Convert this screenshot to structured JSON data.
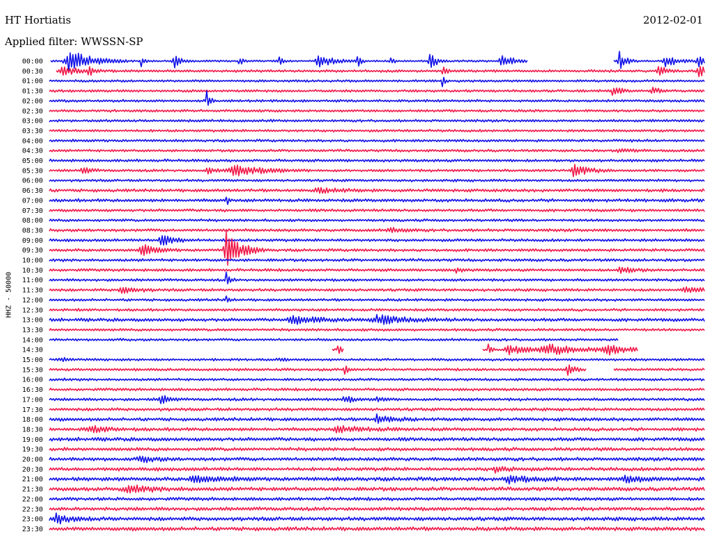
{
  "header": {
    "station": "HT Hortiatis",
    "filter": "Applied filter: WWSSN-SP",
    "date": "2012-02-01"
  },
  "colors": {
    "blue": "#1010e8",
    "red": "#f01848",
    "text": "#000000"
  },
  "chart_data": {
    "type": "line",
    "title": "HT Hortiatis",
    "subtitle": "Applied filter: WWSSN-SP",
    "date": "2012-02-01",
    "ylabel": "HHZ - 50000",
    "xlabel": "",
    "grid": false,
    "legend": "none",
    "series_colors": [
      "#1010e8",
      "#f01848"
    ],
    "rows": [
      {
        "label": "00:00",
        "noise": 1.5,
        "events": [
          {
            "x": 0.03,
            "amp": 18,
            "dur": 0.03
          },
          {
            "x": 0.14,
            "amp": 8,
            "dur": 0.005
          },
          {
            "x": 0.19,
            "amp": 10,
            "dur": 0.01
          },
          {
            "x": 0.29,
            "amp": 8,
            "dur": 0.005
          },
          {
            "x": 0.35,
            "amp": 10,
            "dur": 0.005
          },
          {
            "x": 0.41,
            "amp": 10,
            "dur": 0.02
          },
          {
            "x": 0.47,
            "amp": 12,
            "dur": 0.005
          },
          {
            "x": 0.52,
            "amp": 8,
            "dur": 0.005
          },
          {
            "x": 0.58,
            "amp": 12,
            "dur": 0.01
          },
          {
            "x": 0.69,
            "amp": 8,
            "dur": 0.02
          },
          {
            "x": 0.87,
            "amp": 14,
            "dur": 0.01
          },
          {
            "x": 0.94,
            "amp": 8,
            "dur": 0.02
          },
          {
            "x": 0.99,
            "amp": 10,
            "dur": 0.01
          }
        ],
        "gaps": [
          [
            0.0,
            0.0
          ],
          [
            0.73,
            0.86
          ]
        ]
      },
      {
        "label": "00:30",
        "noise": 2,
        "events": [
          {
            "x": 0.02,
            "amp": 7,
            "dur": 0.02
          },
          {
            "x": 0.06,
            "amp": 6,
            "dur": 0.01
          },
          {
            "x": 0.6,
            "amp": 8,
            "dur": 0.005
          },
          {
            "x": 0.93,
            "amp": 8,
            "dur": 0.01
          },
          {
            "x": 0.99,
            "amp": 10,
            "dur": 0.01
          }
        ],
        "gaps": [
          [
            0.0,
            0.01
          ]
        ]
      },
      {
        "label": "01:00",
        "noise": 1.8,
        "events": [
          {
            "x": 0.6,
            "amp": 10,
            "dur": 0.003
          }
        ],
        "gaps": []
      },
      {
        "label": "01:30",
        "noise": 2,
        "events": [
          {
            "x": 0.86,
            "amp": 9,
            "dur": 0.01
          },
          {
            "x": 0.92,
            "amp": 5,
            "dur": 0.01
          }
        ],
        "gaps": []
      },
      {
        "label": "02:00",
        "noise": 2,
        "events": [
          {
            "x": 0.24,
            "amp": 18,
            "dur": 0.005
          }
        ],
        "gaps": []
      },
      {
        "label": "02:30",
        "noise": 2,
        "events": [],
        "gaps": []
      },
      {
        "label": "03:00",
        "noise": 2,
        "events": [],
        "gaps": []
      },
      {
        "label": "03:30",
        "noise": 2,
        "events": [],
        "gaps": []
      },
      {
        "label": "04:00",
        "noise": 2,
        "events": [],
        "gaps": []
      },
      {
        "label": "04:30",
        "noise": 2,
        "events": [
          {
            "x": 0.87,
            "amp": 3,
            "dur": 0.02
          }
        ],
        "gaps": []
      },
      {
        "label": "05:00",
        "noise": 2.2,
        "events": [],
        "gaps": []
      },
      {
        "label": "05:30",
        "noise": 2,
        "events": [
          {
            "x": 0.05,
            "amp": 6,
            "dur": 0.01
          },
          {
            "x": 0.24,
            "amp": 5,
            "dur": 0.01
          },
          {
            "x": 0.28,
            "amp": 8,
            "dur": 0.04
          },
          {
            "x": 0.8,
            "amp": 9,
            "dur": 0.02
          }
        ],
        "gaps": []
      },
      {
        "label": "06:00",
        "noise": 2,
        "events": [],
        "gaps": []
      },
      {
        "label": "06:30",
        "noise": 2.4,
        "events": [
          {
            "x": 0.41,
            "amp": 3,
            "dur": 0.03
          }
        ],
        "gaps": []
      },
      {
        "label": "07:00",
        "noise": 2.4,
        "events": [
          {
            "x": 0.27,
            "amp": 8,
            "dur": 0.003
          }
        ],
        "gaps": []
      },
      {
        "label": "07:30",
        "noise": 2.2,
        "events": [],
        "gaps": []
      },
      {
        "label": "08:00",
        "noise": 2,
        "events": [],
        "gaps": []
      },
      {
        "label": "08:30",
        "noise": 2.3,
        "events": [
          {
            "x": 0.52,
            "amp": 3,
            "dur": 0.02
          }
        ],
        "gaps": []
      },
      {
        "label": "09:00",
        "noise": 2.2,
        "events": [
          {
            "x": 0.17,
            "amp": 8,
            "dur": 0.02
          }
        ],
        "gaps": []
      },
      {
        "label": "09:30",
        "noise": 2.2,
        "events": [
          {
            "x": 0.14,
            "amp": 8,
            "dur": 0.02
          },
          {
            "x": 0.27,
            "amp": 26,
            "dur": 0.02
          }
        ],
        "gaps": []
      },
      {
        "label": "10:00",
        "noise": 2.2,
        "events": [],
        "gaps": []
      },
      {
        "label": "10:30",
        "noise": 2.2,
        "events": [
          {
            "x": 0.62,
            "amp": 3,
            "dur": 0.01
          },
          {
            "x": 0.87,
            "amp": 5,
            "dur": 0.02
          }
        ],
        "gaps": []
      },
      {
        "label": "11:00",
        "noise": 2,
        "events": [
          {
            "x": 0.27,
            "amp": 10,
            "dur": 0.005
          }
        ],
        "gaps": []
      },
      {
        "label": "11:30",
        "noise": 2.2,
        "events": [
          {
            "x": 0.11,
            "amp": 5,
            "dur": 0.02
          },
          {
            "x": 0.97,
            "amp": 4,
            "dur": 0.02
          }
        ],
        "gaps": []
      },
      {
        "label": "12:00",
        "noise": 2,
        "events": [
          {
            "x": 0.27,
            "amp": 8,
            "dur": 0.003
          }
        ],
        "gaps": []
      },
      {
        "label": "12:30",
        "noise": 2,
        "events": [],
        "gaps": []
      },
      {
        "label": "13:00",
        "noise": 2.5,
        "events": [
          {
            "x": 0.37,
            "amp": 5,
            "dur": 0.05
          },
          {
            "x": 0.5,
            "amp": 6,
            "dur": 0.04
          }
        ],
        "gaps": []
      },
      {
        "label": "13:30",
        "noise": 2,
        "events": [],
        "gaps": []
      },
      {
        "label": "14:00",
        "noise": 2,
        "events": [],
        "gaps": [
          [
            0.87,
            1.0
          ]
        ]
      },
      {
        "label": "14:30",
        "noise": 1.5,
        "events": [
          {
            "x": 0.44,
            "amp": 8,
            "dur": 0.005
          },
          {
            "x": 0.67,
            "amp": 7,
            "dur": 0.005
          },
          {
            "x": 0.7,
            "amp": 7,
            "dur": 0.03
          },
          {
            "x": 0.76,
            "amp": 7,
            "dur": 0.06
          },
          {
            "x": 0.85,
            "amp": 6,
            "dur": 0.03
          }
        ],
        "gaps": [
          [
            0.0,
            0.43
          ],
          [
            0.45,
            0.66
          ],
          [
            0.9,
            1.0
          ]
        ]
      },
      {
        "label": "15:00",
        "noise": 2,
        "events": [
          {
            "x": 0.02,
            "amp": 4,
            "dur": 0.005
          },
          {
            "x": 0.35,
            "amp": 4,
            "dur": 0.005
          }
        ],
        "gaps": []
      },
      {
        "label": "15:30",
        "noise": 2,
        "events": [
          {
            "x": 0.45,
            "amp": 8,
            "dur": 0.005
          },
          {
            "x": 0.79,
            "amp": 8,
            "dur": 0.01
          }
        ],
        "gaps": [
          [
            0.82,
            0.86
          ]
        ]
      },
      {
        "label": "16:00",
        "noise": 2,
        "events": [],
        "gaps": []
      },
      {
        "label": "16:30",
        "noise": 2.2,
        "events": [],
        "gaps": []
      },
      {
        "label": "17:00",
        "noise": 2.2,
        "events": [
          {
            "x": 0.17,
            "amp": 8,
            "dur": 0.01
          },
          {
            "x": 0.45,
            "amp": 6,
            "dur": 0.01
          },
          {
            "x": 0.5,
            "amp": 4,
            "dur": 0.01
          }
        ],
        "gaps": []
      },
      {
        "label": "17:30",
        "noise": 2.4,
        "events": [],
        "gaps": []
      },
      {
        "label": "18:00",
        "noise": 2.6,
        "events": [
          {
            "x": 0.5,
            "amp": 6,
            "dur": 0.02
          }
        ],
        "gaps": []
      },
      {
        "label": "18:30",
        "noise": 2.6,
        "events": [
          {
            "x": 0.06,
            "amp": 4,
            "dur": 0.03
          },
          {
            "x": 0.44,
            "amp": 4,
            "dur": 0.04
          }
        ],
        "gaps": []
      },
      {
        "label": "19:00",
        "noise": 2.8,
        "events": [],
        "gaps": []
      },
      {
        "label": "19:30",
        "noise": 2.6,
        "events": [],
        "gaps": []
      },
      {
        "label": "20:00",
        "noise": 2.8,
        "events": [
          {
            "x": 0.14,
            "amp": 4,
            "dur": 0.02
          }
        ],
        "gaps": []
      },
      {
        "label": "20:30",
        "noise": 2.8,
        "events": [
          {
            "x": 0.68,
            "amp": 4,
            "dur": 0.02
          }
        ],
        "gaps": []
      },
      {
        "label": "21:00",
        "noise": 3,
        "events": [
          {
            "x": 0.22,
            "amp": 5,
            "dur": 0.03
          },
          {
            "x": 0.7,
            "amp": 6,
            "dur": 0.03
          },
          {
            "x": 0.88,
            "amp": 5,
            "dur": 0.02
          }
        ],
        "gaps": []
      },
      {
        "label": "21:30",
        "noise": 3,
        "events": [
          {
            "x": 0.12,
            "amp": 4,
            "dur": 0.04
          }
        ],
        "gaps": []
      },
      {
        "label": "22:00",
        "noise": 2.6,
        "events": [],
        "gaps": []
      },
      {
        "label": "22:30",
        "noise": 2.8,
        "events": [],
        "gaps": []
      },
      {
        "label": "23:00",
        "noise": 3,
        "events": [
          {
            "x": 0.01,
            "amp": 7,
            "dur": 0.02
          }
        ],
        "gaps": []
      },
      {
        "label": "23:30",
        "noise": 3,
        "events": [],
        "gaps": []
      }
    ]
  }
}
